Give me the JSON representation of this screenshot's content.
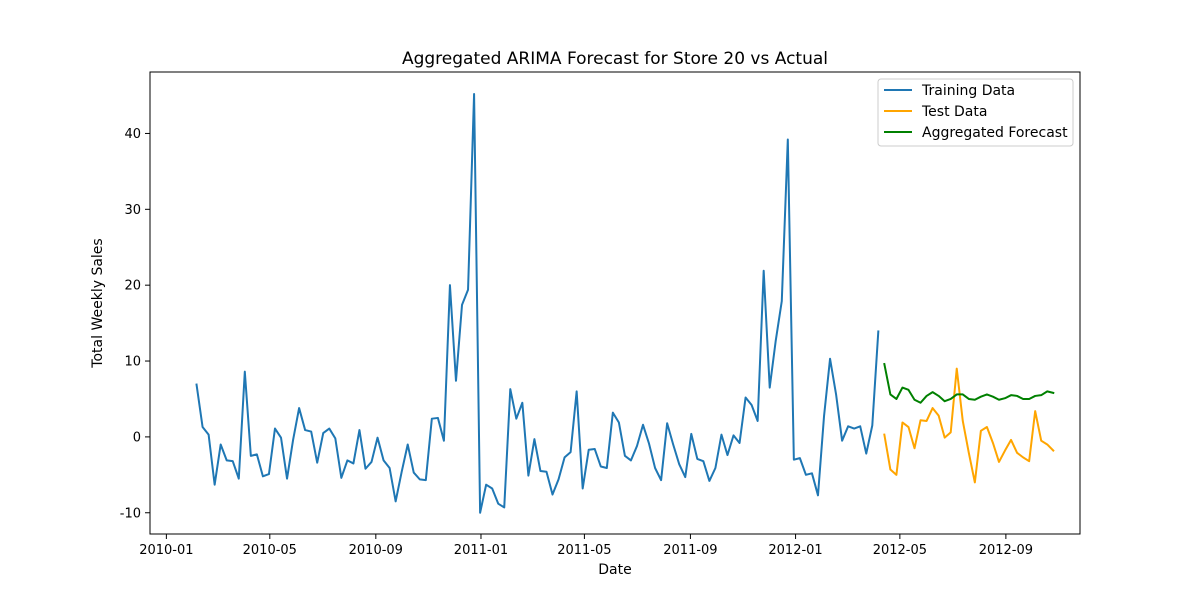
{
  "chart_data": {
    "type": "line",
    "title": "Aggregated ARIMA Forecast for Store 20 vs Actual",
    "xlabel": "Date",
    "ylabel": "Total Weekly Sales",
    "xlim": [
      "2009-12-13",
      "2012-11-26"
    ],
    "ylim": [
      -12.8,
      48.1
    ],
    "x_ticks": [
      "2010-01",
      "2010-05",
      "2010-09",
      "2011-01",
      "2011-05",
      "2011-09",
      "2012-01",
      "2012-05",
      "2012-09"
    ],
    "y_ticks": [
      -10,
      0,
      10,
      20,
      30,
      40
    ],
    "grid": false,
    "legend_position": "top-right",
    "series": [
      {
        "name": "Training Data",
        "color": "#1f77b4",
        "x": [
          "2010-02-05",
          "2010-02-12",
          "2010-02-19",
          "2010-02-26",
          "2010-03-05",
          "2010-03-12",
          "2010-03-19",
          "2010-03-26",
          "2010-04-02",
          "2010-04-09",
          "2010-04-16",
          "2010-04-23",
          "2010-04-30",
          "2010-05-07",
          "2010-05-14",
          "2010-05-21",
          "2010-05-28",
          "2010-06-04",
          "2010-06-11",
          "2010-06-18",
          "2010-06-25",
          "2010-07-02",
          "2010-07-09",
          "2010-07-16",
          "2010-07-23",
          "2010-07-30",
          "2010-08-06",
          "2010-08-13",
          "2010-08-20",
          "2010-08-27",
          "2010-09-03",
          "2010-09-10",
          "2010-09-17",
          "2010-09-24",
          "2010-10-01",
          "2010-10-08",
          "2010-10-15",
          "2010-10-22",
          "2010-10-29",
          "2010-11-05",
          "2010-11-12",
          "2010-11-19",
          "2010-11-26",
          "2010-12-03",
          "2010-12-10",
          "2010-12-17",
          "2010-12-24",
          "2010-12-31",
          "2011-01-07",
          "2011-01-14",
          "2011-01-21",
          "2011-01-28",
          "2011-02-04",
          "2011-02-11",
          "2011-02-18",
          "2011-02-25",
          "2011-03-04",
          "2011-03-11",
          "2011-03-18",
          "2011-03-25",
          "2011-04-01",
          "2011-04-08",
          "2011-04-15",
          "2011-04-22",
          "2011-04-29",
          "2011-05-06",
          "2011-05-13",
          "2011-05-20",
          "2011-05-27",
          "2011-06-03",
          "2011-06-10",
          "2011-06-17",
          "2011-06-24",
          "2011-07-01",
          "2011-07-08",
          "2011-07-15",
          "2011-07-22",
          "2011-07-29",
          "2011-08-05",
          "2011-08-12",
          "2011-08-19",
          "2011-08-26",
          "2011-09-02",
          "2011-09-09",
          "2011-09-16",
          "2011-09-23",
          "2011-09-30",
          "2011-10-07",
          "2011-10-14",
          "2011-10-21",
          "2011-10-28",
          "2011-11-04",
          "2011-11-11",
          "2011-11-18",
          "2011-11-25",
          "2011-12-02",
          "2011-12-09",
          "2011-12-16",
          "2011-12-23",
          "2011-12-30",
          "2012-01-06",
          "2012-01-13",
          "2012-01-20",
          "2012-01-27",
          "2012-02-03",
          "2012-02-10",
          "2012-02-17",
          "2012-02-24",
          "2012-03-02",
          "2012-03-09",
          "2012-03-16",
          "2012-03-23",
          "2012-03-30",
          "2012-04-06"
        ],
        "values": [
          6.9,
          1.3,
          0.3,
          -6.3,
          -1.0,
          -3.1,
          -3.2,
          -5.5,
          8.6,
          -2.5,
          -2.3,
          -5.2,
          -4.9,
          1.1,
          -0.1,
          -5.5,
          -0.4,
          3.8,
          0.9,
          0.7,
          -3.4,
          0.5,
          1.1,
          -0.2,
          -5.4,
          -3.1,
          -3.5,
          0.9,
          -4.2,
          -3.3,
          -0.1,
          -3.1,
          -4.1,
          -8.5,
          -4.6,
          -1.0,
          -4.7,
          -5.6,
          -5.7,
          2.4,
          2.5,
          -0.5,
          20.0,
          7.4,
          17.4,
          19.4,
          45.2,
          -10.0,
          -6.3,
          -6.8,
          -8.8,
          -9.3,
          6.3,
          2.4,
          4.5,
          -5.1,
          -0.3,
          -4.5,
          -4.6,
          -7.6,
          -5.6,
          -2.7,
          -2.0,
          6.0,
          -6.8,
          -1.7,
          -1.6,
          -3.9,
          -4.1,
          3.2,
          1.9,
          -2.5,
          -3.1,
          -1.2,
          1.6,
          -0.9,
          -4.1,
          -5.7,
          1.8,
          -1.0,
          -3.6,
          -5.3,
          0.4,
          -2.9,
          -3.2,
          -5.8,
          -4.1,
          0.3,
          -2.4,
          0.2,
          -0.8,
          5.2,
          4.2,
          2.1,
          21.9,
          6.5,
          12.7,
          17.9,
          39.2,
          -3.0,
          -2.8,
          -5.0,
          -4.8,
          -7.7,
          2.7,
          10.3,
          5.6,
          -0.5,
          1.4,
          1.1,
          1.4,
          -2.2,
          1.5,
          13.9
        ]
      },
      {
        "name": "Test Data",
        "color": "#ffa500",
        "x": [
          "2012-04-13",
          "2012-04-20",
          "2012-04-27",
          "2012-05-04",
          "2012-05-11",
          "2012-05-18",
          "2012-05-25",
          "2012-06-01",
          "2012-06-08",
          "2012-06-15",
          "2012-06-22",
          "2012-06-29",
          "2012-07-06",
          "2012-07-13",
          "2012-07-20",
          "2012-07-27",
          "2012-08-03",
          "2012-08-10",
          "2012-08-17",
          "2012-08-24",
          "2012-08-31",
          "2012-09-07",
          "2012-09-14",
          "2012-09-21",
          "2012-09-28",
          "2012-10-05",
          "2012-10-12",
          "2012-10-19",
          "2012-10-26"
        ],
        "values": [
          0.3,
          -4.3,
          -5.0,
          1.9,
          1.3,
          -1.5,
          2.2,
          2.1,
          3.8,
          2.8,
          -0.1,
          0.6,
          9.0,
          2.1,
          -2.1,
          -6.0,
          0.8,
          1.3,
          -0.8,
          -3.3,
          -1.8,
          -0.4,
          -2.1,
          -2.7,
          -3.2,
          3.4,
          -0.5,
          -1.0,
          -1.8
        ]
      },
      {
        "name": "Aggregated Forecast",
        "color": "#008000",
        "x": [
          "2012-04-13",
          "2012-04-20",
          "2012-04-27",
          "2012-05-04",
          "2012-05-11",
          "2012-05-18",
          "2012-05-25",
          "2012-06-01",
          "2012-06-08",
          "2012-06-15",
          "2012-06-22",
          "2012-06-29",
          "2012-07-06",
          "2012-07-13",
          "2012-07-20",
          "2012-07-27",
          "2012-08-03",
          "2012-08-10",
          "2012-08-17",
          "2012-08-24",
          "2012-08-31",
          "2012-09-07",
          "2012-09-14",
          "2012-09-21",
          "2012-09-28",
          "2012-10-05",
          "2012-10-12",
          "2012-10-19",
          "2012-10-26"
        ],
        "values": [
          9.6,
          5.6,
          5.0,
          6.5,
          6.2,
          4.9,
          4.5,
          5.4,
          5.9,
          5.4,
          4.7,
          5.0,
          5.6,
          5.6,
          5.0,
          4.9,
          5.3,
          5.6,
          5.3,
          4.9,
          5.1,
          5.5,
          5.4,
          5.0,
          5.0,
          5.4,
          5.5,
          6.0,
          5.8
        ]
      }
    ]
  }
}
